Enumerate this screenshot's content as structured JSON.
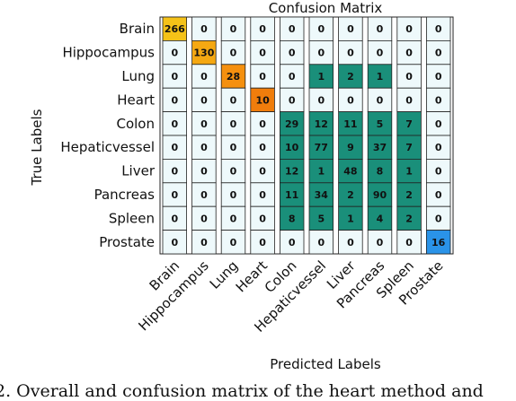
{
  "chart_data": {
    "type": "heatmap",
    "title": "Confusion Matrix",
    "xlabel": "Predicted Labels",
    "ylabel": "True Labels",
    "row_labels": [
      "Brain",
      "Hippocampus",
      "Lung",
      "Heart",
      "Colon",
      "Hepaticvessel",
      "Liver",
      "Pancreas",
      "Spleen",
      "Prostate"
    ],
    "col_labels": [
      "Brain",
      "Hippocampus",
      "Lung",
      "Heart",
      "Colon",
      "Hepaticvessel",
      "Liver",
      "Pancreas",
      "Spleen",
      "Prostate"
    ],
    "values": [
      [
        266,
        0,
        0,
        0,
        0,
        0,
        0,
        0,
        0,
        0
      ],
      [
        0,
        130,
        0,
        0,
        0,
        0,
        0,
        0,
        0,
        0
      ],
      [
        0,
        0,
        28,
        0,
        0,
        1,
        2,
        1,
        0,
        0
      ],
      [
        0,
        0,
        0,
        10,
        0,
        0,
        0,
        0,
        0,
        0
      ],
      [
        0,
        0,
        0,
        0,
        29,
        12,
        11,
        5,
        7,
        0
      ],
      [
        0,
        0,
        0,
        0,
        10,
        77,
        9,
        37,
        7,
        0
      ],
      [
        0,
        0,
        0,
        0,
        12,
        1,
        48,
        8,
        1,
        0
      ],
      [
        0,
        0,
        0,
        0,
        11,
        34,
        2,
        90,
        2,
        0
      ],
      [
        0,
        0,
        0,
        0,
        8,
        5,
        1,
        4,
        2,
        0
      ],
      [
        0,
        0,
        0,
        0,
        0,
        0,
        0,
        0,
        0,
        16
      ]
    ],
    "column_colors": [
      "#f5c218",
      "#f5a812",
      "#f5900f",
      "#f07d0c",
      "#1a8f7a",
      "#1a8f7a",
      "#1a8f7a",
      "#1a8f7a",
      "#1a8f7a",
      "#2a93e8"
    ],
    "zero_color": "#eef9fb"
  },
  "caption": "2. Overall and confusion matrix of the heart method and"
}
